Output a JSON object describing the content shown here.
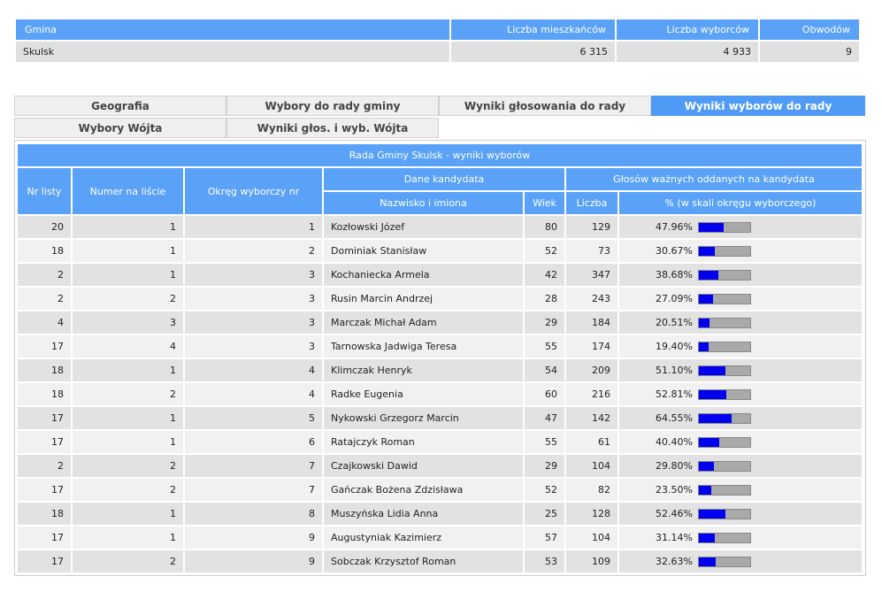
{
  "summary": {
    "headers": [
      "Gmina",
      "Liczba mieszkańców",
      "Liczba wyborców",
      "Obwodów"
    ],
    "row": [
      "Skulsk",
      "6 315",
      "4 933",
      "9"
    ]
  },
  "tabs": [
    {
      "label": "Geografia",
      "active": false
    },
    {
      "label": "Wybory do rady gminy",
      "active": false
    },
    {
      "label": "Wyniki głosowania do rady",
      "active": false
    },
    {
      "label": "Wyniki wyborów do rady",
      "active": true
    },
    {
      "label": "Wybory Wójta",
      "active": false
    },
    {
      "label": "Wyniki głos. i wyb. Wójta",
      "active": false
    }
  ],
  "results": {
    "title": "Rada Gminy Skulsk - wyniki wyborów",
    "headers": {
      "nr_listy": "Nr listy",
      "nr_na_liscie": "Numer na liście",
      "okreg": "Okręg wyborczy nr",
      "dane_kandydata": "Dane kandydata",
      "glosow": "Głosów ważnych oddanych na kandydata",
      "nazwisko": "Nazwisko i imiona",
      "wiek": "Wiek",
      "liczba": "Liczba",
      "procent": "% (w skali okręgu wyborczego)"
    },
    "rows": [
      {
        "lista": "20",
        "nr": "1",
        "okreg": "1",
        "nazwisko": "Kozłowski Józef",
        "wiek": "80",
        "liczba": "129",
        "pct": "47.96%",
        "frac": 0.4796
      },
      {
        "lista": "18",
        "nr": "1",
        "okreg": "2",
        "nazwisko": "Dominiak Stanisław",
        "wiek": "52",
        "liczba": "73",
        "pct": "30.67%",
        "frac": 0.3067
      },
      {
        "lista": "2",
        "nr": "1",
        "okreg": "3",
        "nazwisko": "Kochaniecka Armela",
        "wiek": "42",
        "liczba": "347",
        "pct": "38.68%",
        "frac": 0.3868
      },
      {
        "lista": "2",
        "nr": "2",
        "okreg": "3",
        "nazwisko": "Rusin Marcin Andrzej",
        "wiek": "28",
        "liczba": "243",
        "pct": "27.09%",
        "frac": 0.2709
      },
      {
        "lista": "4",
        "nr": "3",
        "okreg": "3",
        "nazwisko": "Marczak Michał Adam",
        "wiek": "29",
        "liczba": "184",
        "pct": "20.51%",
        "frac": 0.2051
      },
      {
        "lista": "17",
        "nr": "4",
        "okreg": "3",
        "nazwisko": "Tarnowska Jadwiga Teresa",
        "wiek": "55",
        "liczba": "174",
        "pct": "19.40%",
        "frac": 0.194
      },
      {
        "lista": "18",
        "nr": "1",
        "okreg": "4",
        "nazwisko": "Klimczak Henryk",
        "wiek": "54",
        "liczba": "209",
        "pct": "51.10%",
        "frac": 0.511
      },
      {
        "lista": "18",
        "nr": "2",
        "okreg": "4",
        "nazwisko": "Radke Eugenia",
        "wiek": "60",
        "liczba": "216",
        "pct": "52.81%",
        "frac": 0.5281
      },
      {
        "lista": "17",
        "nr": "1",
        "okreg": "5",
        "nazwisko": "Nykowski Grzegorz Marcin",
        "wiek": "47",
        "liczba": "142",
        "pct": "64.55%",
        "frac": 0.6455
      },
      {
        "lista": "17",
        "nr": "1",
        "okreg": "6",
        "nazwisko": "Ratajczyk Roman",
        "wiek": "55",
        "liczba": "61",
        "pct": "40.40%",
        "frac": 0.404
      },
      {
        "lista": "2",
        "nr": "2",
        "okreg": "7",
        "nazwisko": "Czajkowski Dawid",
        "wiek": "29",
        "liczba": "104",
        "pct": "29.80%",
        "frac": 0.298
      },
      {
        "lista": "17",
        "nr": "2",
        "okreg": "7",
        "nazwisko": "Gańczak Bożena Zdzisława",
        "wiek": "52",
        "liczba": "82",
        "pct": "23.50%",
        "frac": 0.235
      },
      {
        "lista": "18",
        "nr": "1",
        "okreg": "8",
        "nazwisko": "Muszyńska Lidia Anna",
        "wiek": "25",
        "liczba": "128",
        "pct": "52.46%",
        "frac": 0.5246
      },
      {
        "lista": "17",
        "nr": "1",
        "okreg": "9",
        "nazwisko": "Augustyniak Kazimierz",
        "wiek": "57",
        "liczba": "104",
        "pct": "31.14%",
        "frac": 0.3114
      },
      {
        "lista": "17",
        "nr": "2",
        "okreg": "9",
        "nazwisko": "Sobczak Krzysztof Roman",
        "wiek": "53",
        "liczba": "109",
        "pct": "32.63%",
        "frac": 0.3263
      }
    ]
  },
  "colors": {
    "header_blue": "#5aa2f7",
    "bar_fill": "#0000ee",
    "bar_bg": "#a9a9a9"
  }
}
